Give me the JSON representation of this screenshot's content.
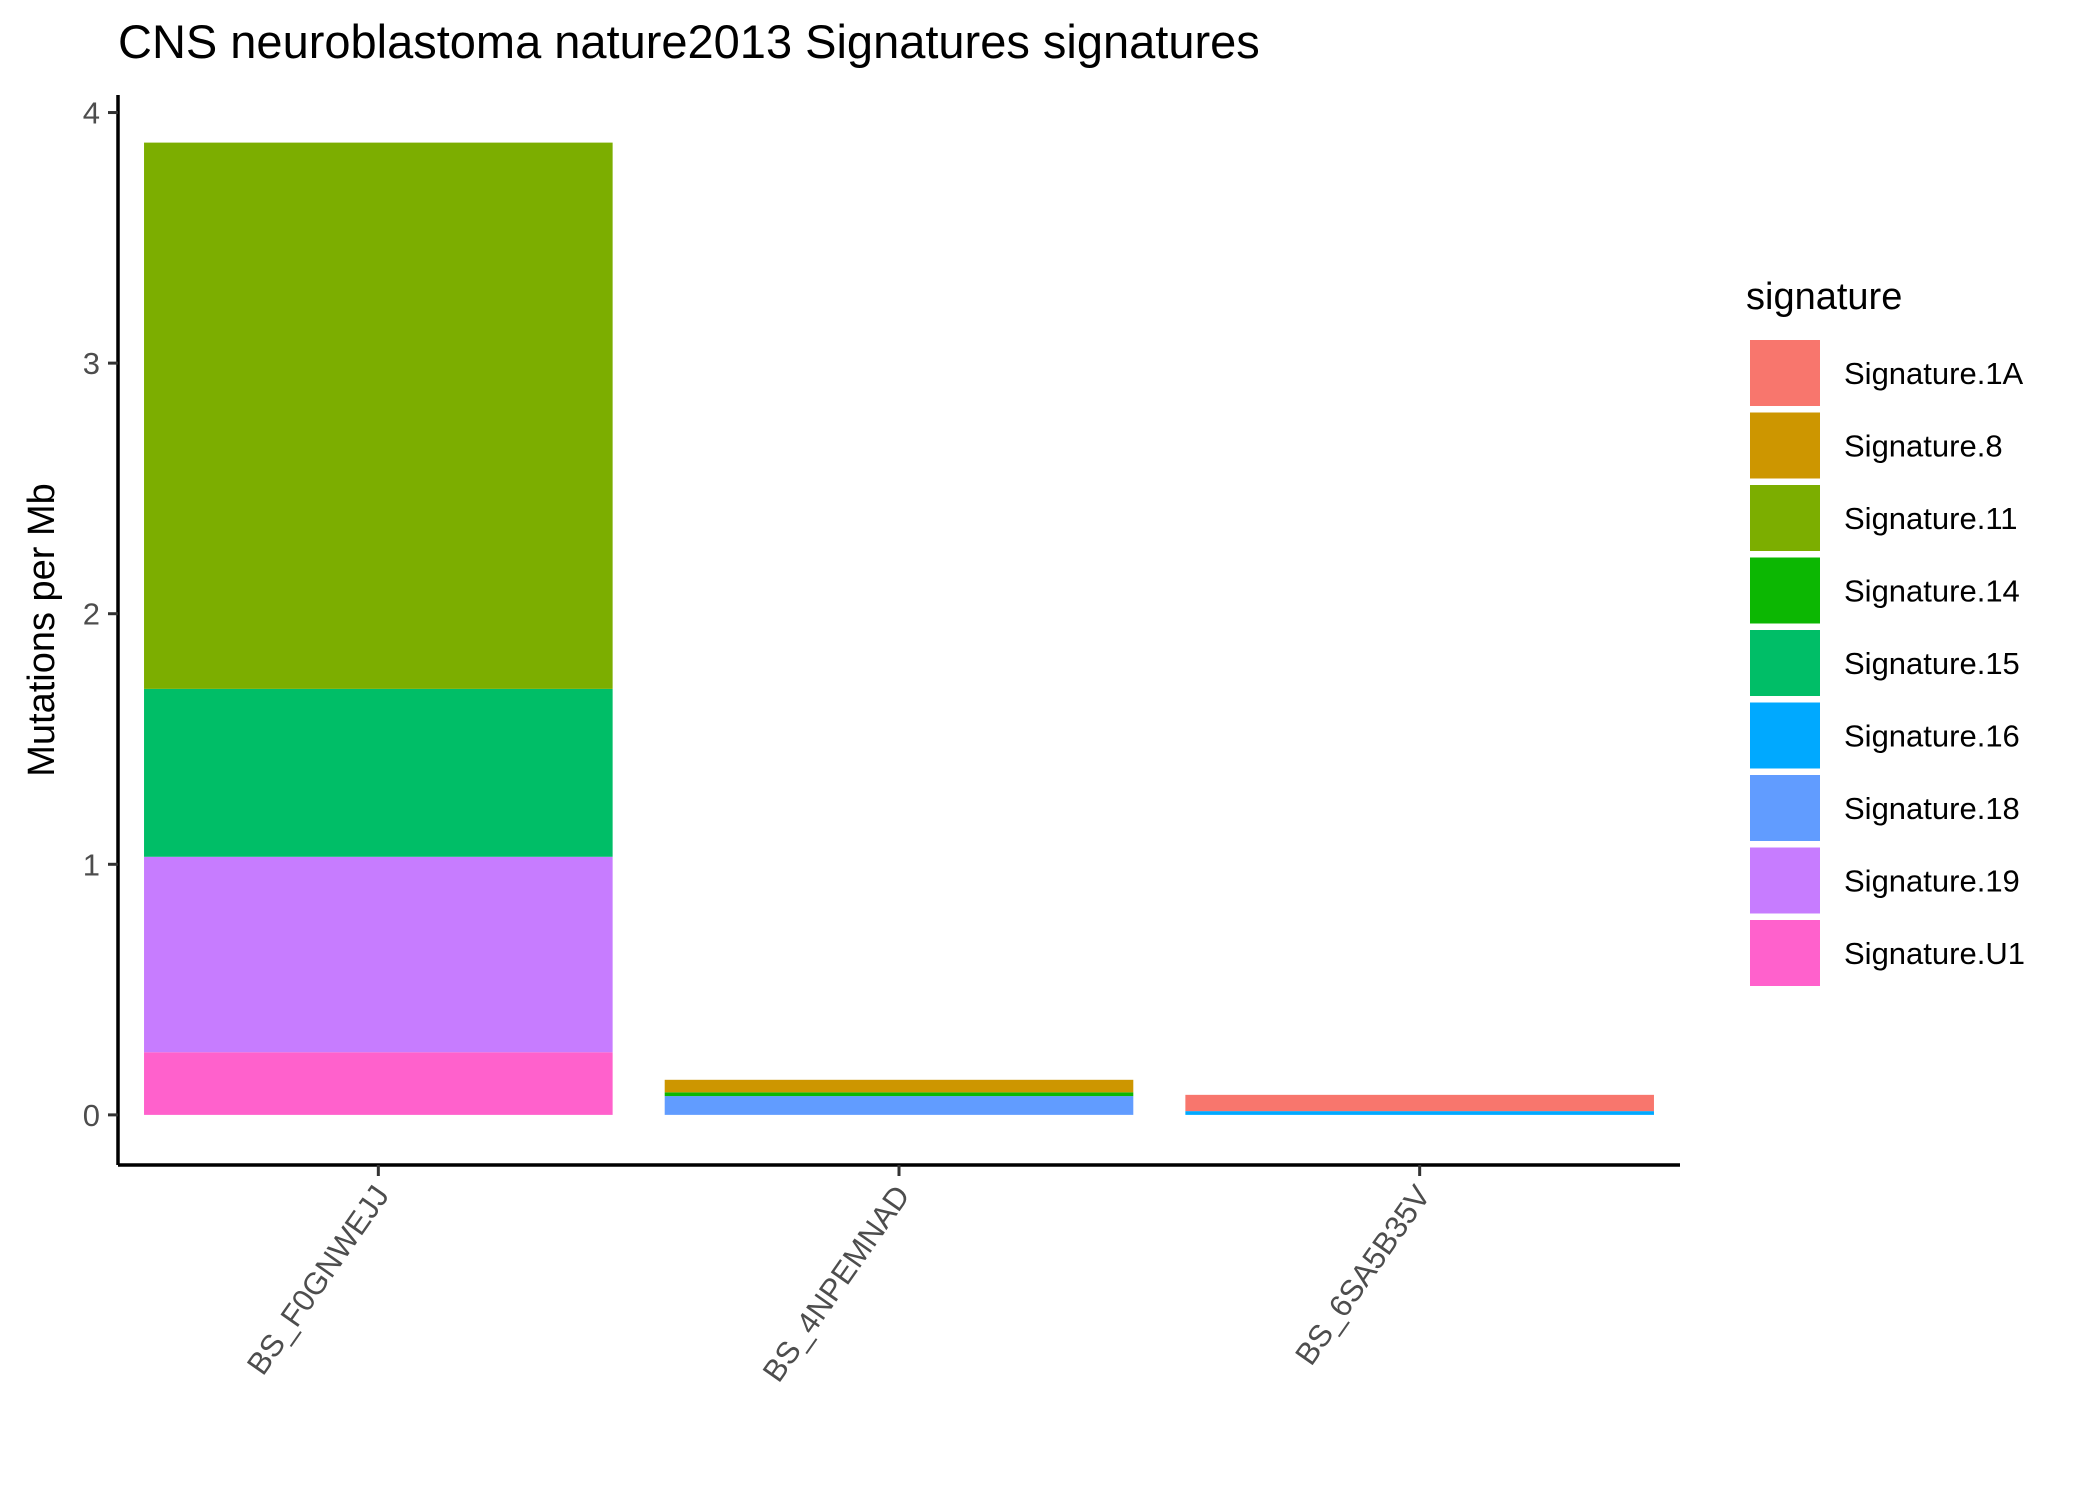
{
  "chart_data": {
    "type": "bar",
    "stacked": true,
    "title": "CNS neuroblastoma nature2013 Signatures signatures",
    "xlabel": "",
    "ylabel": "Mutations per Mb",
    "ylim": [
      -0.2,
      4.07
    ],
    "yticks": [
      0,
      1,
      2,
      3,
      4
    ],
    "grid": false,
    "legend_position": "right",
    "legend_title": "signature",
    "categories": [
      "BS_F0GNWEJJ",
      "BS_4NPEMNAD",
      "BS_6SA5B35V"
    ],
    "series": [
      {
        "name": "Signature.1A",
        "color": "#F8766D",
        "values": [
          0,
          0,
          0.065
        ]
      },
      {
        "name": "Signature.8",
        "color": "#CD9600",
        "values": [
          0,
          0.05,
          0
        ]
      },
      {
        "name": "Signature.11",
        "color": "#7CAE00",
        "values": [
          2.18,
          0,
          0
        ]
      },
      {
        "name": "Signature.14",
        "color": "#0CB702",
        "values": [
          0,
          0.015,
          0
        ]
      },
      {
        "name": "Signature.15",
        "color": "#00BE67",
        "values": [
          0.67,
          0,
          0
        ]
      },
      {
        "name": "Signature.16",
        "color": "#00A9FF",
        "values": [
          0,
          0,
          0.015
        ]
      },
      {
        "name": "Signature.18",
        "color": "#619CFF",
        "values": [
          0,
          0.075,
          0
        ]
      },
      {
        "name": "Signature.19",
        "color": "#C77CFF",
        "values": [
          0.78,
          0,
          0
        ]
      },
      {
        "name": "Signature.U1",
        "color": "#FF61CC",
        "values": [
          0.25,
          0,
          0
        ]
      }
    ],
    "stack_order": [
      "Signature.U1",
      "Signature.19",
      "Signature.18",
      "Signature.16",
      "Signature.15",
      "Signature.14",
      "Signature.11",
      "Signature.8",
      "Signature.1A"
    ]
  }
}
